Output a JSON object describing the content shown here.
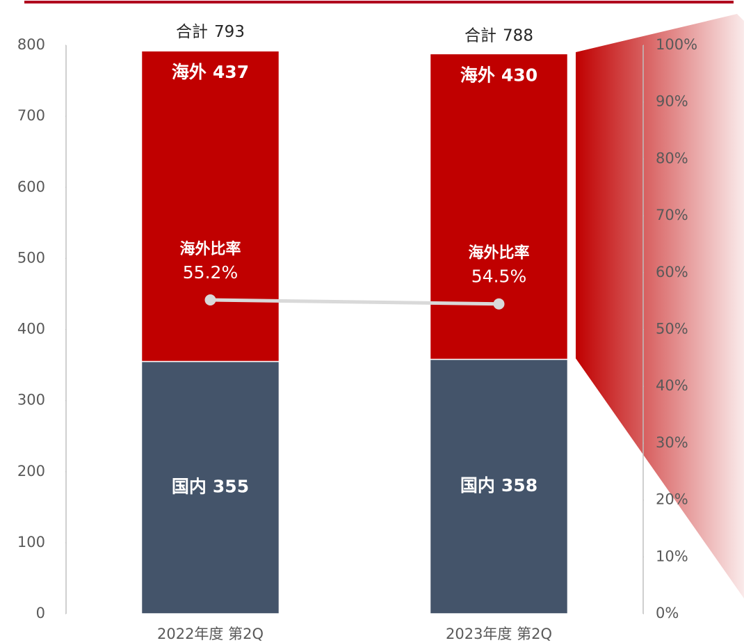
{
  "chart_data": {
    "type": "bar",
    "categories": [
      "2022年度 第2Q",
      "2023年度 第2Q"
    ],
    "series": [
      {
        "name": "国内",
        "color": "#44546a",
        "values": [
          355,
          358
        ]
      },
      {
        "name": "海外",
        "color": "#c00000",
        "values": [
          437,
          430
        ]
      },
      {
        "name": "海外比率",
        "color": "#d9d9d9",
        "values": [
          55.2,
          54.5
        ],
        "value_labels": [
          "55.2%",
          "54.5%"
        ],
        "axis": "y2"
      }
    ],
    "totals": {
      "name": "合計",
      "values": [
        793,
        788
      ]
    },
    "stacked": true,
    "ylim": [
      0,
      800
    ],
    "yticks": [
      0,
      100,
      200,
      300,
      400,
      500,
      600,
      700,
      800
    ],
    "y2lim": [
      0,
      100
    ],
    "y2ticks": [
      {
        "value": 0,
        "label": "0%"
      },
      {
        "value": 10,
        "label": "10%"
      },
      {
        "value": 20,
        "label": "20%"
      },
      {
        "value": 30,
        "label": "30%"
      },
      {
        "value": 40,
        "label": "40%"
      },
      {
        "value": 50,
        "label": "50%"
      },
      {
        "value": 60,
        "label": "60%"
      },
      {
        "value": 70,
        "label": "70%"
      },
      {
        "value": 80,
        "label": "80%"
      },
      {
        "value": 90,
        "label": "90%"
      },
      {
        "value": 100,
        "label": "100%"
      }
    ]
  }
}
